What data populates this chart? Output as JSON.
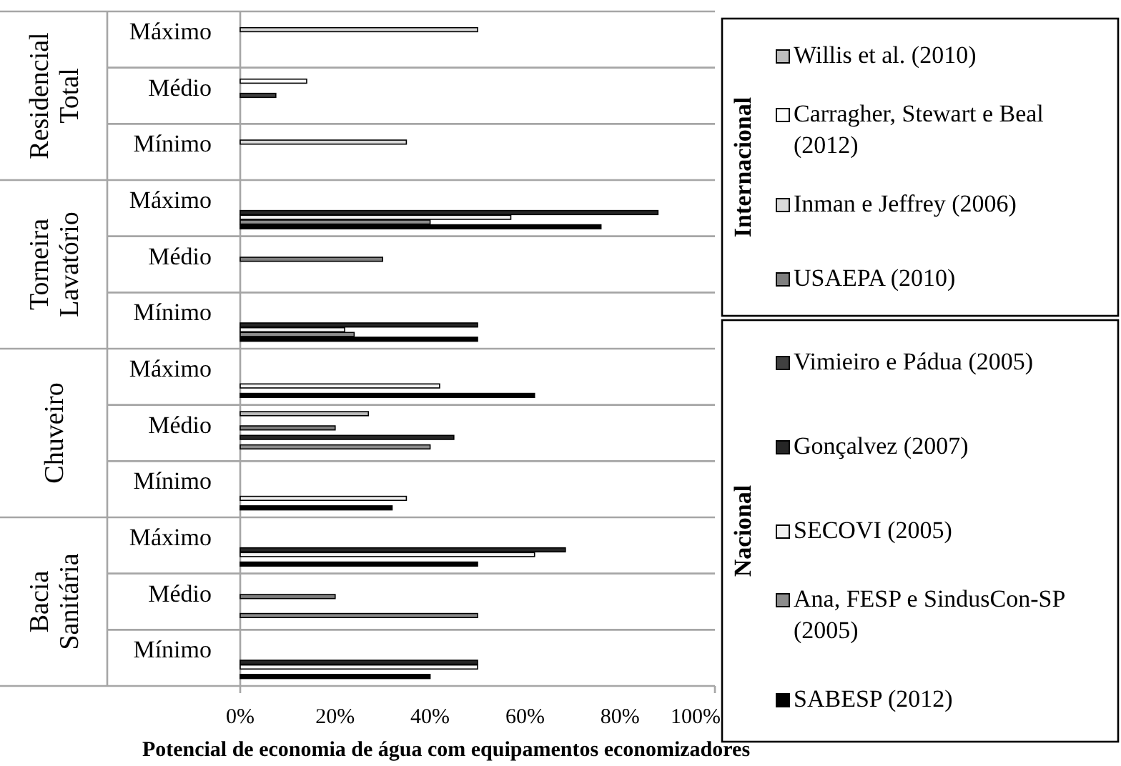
{
  "chart_data": {
    "type": "bar",
    "orientation": "horizontal",
    "xlabel": "Potencial de economia de água com equipamentos economizadores",
    "categories": [
      "Máximo",
      "Médio",
      "Mínimo",
      "Máximo",
      "Médio",
      "Mínimo",
      "Máximo",
      "Médio",
      "Mínimo",
      "Máximo",
      "Médio",
      "Mínimo"
    ],
    "xlim": [
      0,
      100
    ],
    "xticks": [
      {
        "value": 0,
        "label": "0%"
      },
      {
        "value": 20,
        "label": "20%"
      },
      {
        "value": 40,
        "label": "40%"
      },
      {
        "value": 60,
        "label": "60%"
      },
      {
        "value": 80,
        "label": "80%"
      },
      {
        "value": 100,
        "label": "100%"
      }
    ],
    "grid": false,
    "legend": "right",
    "annotations": [
      "Residencial Total",
      "Torneira Lavatório",
      "Chuveiro",
      "Bacia Sanitária",
      "Internacional",
      "Nacional"
    ],
    "series": [
      {
        "name": "Willis et al. (2010)",
        "color": "#bdbdbd",
        "values": [
          null,
          null,
          null,
          null,
          null,
          null,
          null,
          27,
          null,
          null,
          null,
          null
        ]
      },
      {
        "name": "Carragher, Stewart e Beal (2012)",
        "color": "#ffffff",
        "values": [
          null,
          14,
          null,
          null,
          null,
          null,
          null,
          null,
          null,
          null,
          null,
          null
        ]
      },
      {
        "name": "Inman e Jeffrey (2006)",
        "color": "#d9d9d9",
        "values": [
          50,
          null,
          35,
          null,
          null,
          null,
          null,
          null,
          null,
          null,
          null,
          null
        ]
      },
      {
        "name": "USAEPA (2010)",
        "color": "#7f7f7f",
        "values": [
          null,
          null,
          null,
          null,
          30,
          null,
          null,
          20,
          null,
          null,
          20,
          null
        ]
      },
      {
        "name": "Vimieiro e Pádua (2005)",
        "color": "#404040",
        "values": [
          null,
          7.5,
          null,
          null,
          null,
          null,
          null,
          null,
          null,
          null,
          null,
          null
        ]
      },
      {
        "name": "Gonçalvez (2007)",
        "color": "#262626",
        "values": [
          null,
          null,
          null,
          88,
          null,
          50,
          null,
          45,
          null,
          68.5,
          null,
          50
        ]
      },
      {
        "name": "SECOVI (2005)",
        "color": "#f2f2f2",
        "values": [
          null,
          null,
          null,
          57,
          null,
          22,
          42,
          null,
          35,
          62,
          null,
          50
        ]
      },
      {
        "name": "Ana, FESP e SindusCon-SP (2005)",
        "color": "#8c8c8c",
        "values": [
          null,
          null,
          null,
          40,
          null,
          24,
          null,
          40,
          null,
          null,
          50,
          null
        ]
      },
      {
        "name": "SABESP (2012)",
        "color": "#000000",
        "values": [
          null,
          null,
          null,
          76,
          null,
          50,
          62,
          null,
          32,
          50,
          null,
          40
        ]
      }
    ]
  }
}
